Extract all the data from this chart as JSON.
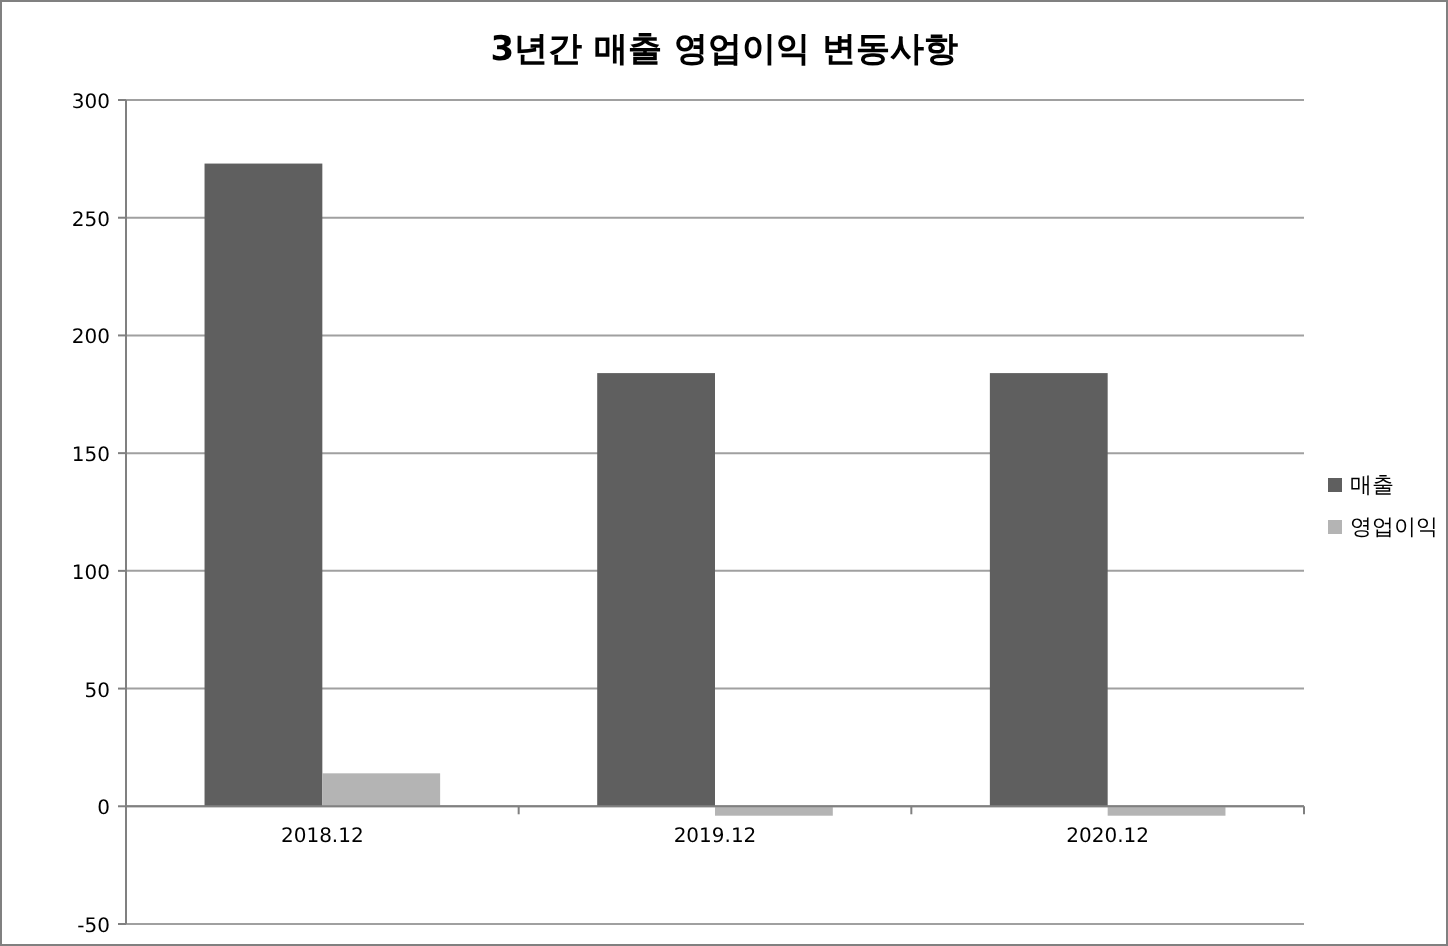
{
  "chart_data": {
    "type": "bar",
    "title": "3년간 매출 영업이익 변동사항",
    "categories": [
      "2018.12",
      "2019.12",
      "2020.12"
    ],
    "series": [
      {
        "name": "매출",
        "color": "#5f5f5f",
        "values": [
          273,
          184,
          184
        ]
      },
      {
        "name": "영업이익",
        "color": "#b4b4b4",
        "values": [
          14,
          -4,
          -4
        ]
      }
    ],
    "ylim": [
      -50,
      300
    ],
    "yticks": [
      -50,
      0,
      50,
      100,
      150,
      200,
      250,
      300
    ],
    "grid": "y",
    "legend": "right"
  }
}
